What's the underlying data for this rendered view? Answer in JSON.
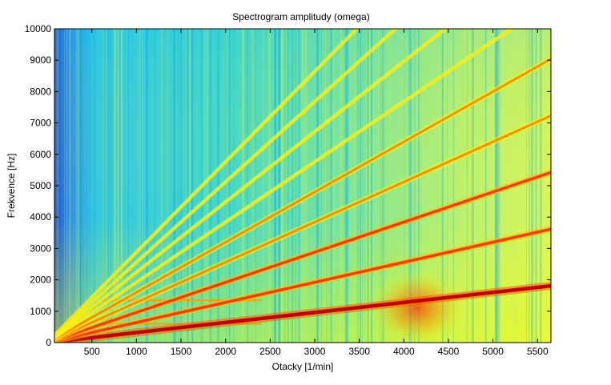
{
  "chart_data": {
    "type": "heatmap",
    "title": "Spectrogram amplitudy (omega)",
    "xlabel": "Otacky [1/min]",
    "ylabel": "Frekvence [Hz]",
    "xlim": [
      80,
      5650
    ],
    "ylim": [
      0,
      10000
    ],
    "x_ticks": [
      500,
      1000,
      1500,
      2000,
      2500,
      3000,
      3500,
      4000,
      4500,
      5000,
      5500
    ],
    "x_tick_labels": [
      "500",
      "1000",
      "1500",
      "2000",
      "2500",
      "3000",
      "3500",
      "4000",
      "4500",
      "5000",
      "5500"
    ],
    "y_ticks": [
      0,
      1000,
      2000,
      3000,
      4000,
      5000,
      6000,
      7000,
      8000,
      9000,
      10000
    ],
    "y_tick_labels": [
      "0",
      "1000",
      "2000",
      "3000",
      "4000",
      "5000",
      "6000",
      "7000",
      "8000",
      "9000",
      "10000"
    ],
    "colormap": "jet",
    "colors": {
      "low": "#1c4fd8",
      "background": "#3fd6d0",
      "mid": "#ffff00",
      "high": "#ff2000",
      "peak": "#b00000"
    },
    "harmonic_lines": [
      {
        "slope_hz_per_rpm": 0.32,
        "intensity": "very high"
      },
      {
        "slope_hz_per_rpm": 0.64,
        "intensity": "high"
      },
      {
        "slope_hz_per_rpm": 0.96,
        "intensity": "high"
      },
      {
        "slope_hz_per_rpm": 1.28,
        "intensity": "medium"
      },
      {
        "slope_hz_per_rpm": 1.6,
        "intensity": "medium"
      },
      {
        "slope_hz_per_rpm": 1.92,
        "intensity": "low"
      },
      {
        "slope_hz_per_rpm": 2.24,
        "intensity": "low"
      },
      {
        "slope_hz_per_rpm": 2.56,
        "intensity": "low"
      },
      {
        "slope_hz_per_rpm": 2.88,
        "intensity": "low"
      }
    ],
    "horizontal_bands_hz": [
      600,
      1350
    ],
    "high_energy_region": {
      "rpm": [
        3900,
        4400
      ],
      "hz": [
        0,
        2200
      ]
    }
  }
}
